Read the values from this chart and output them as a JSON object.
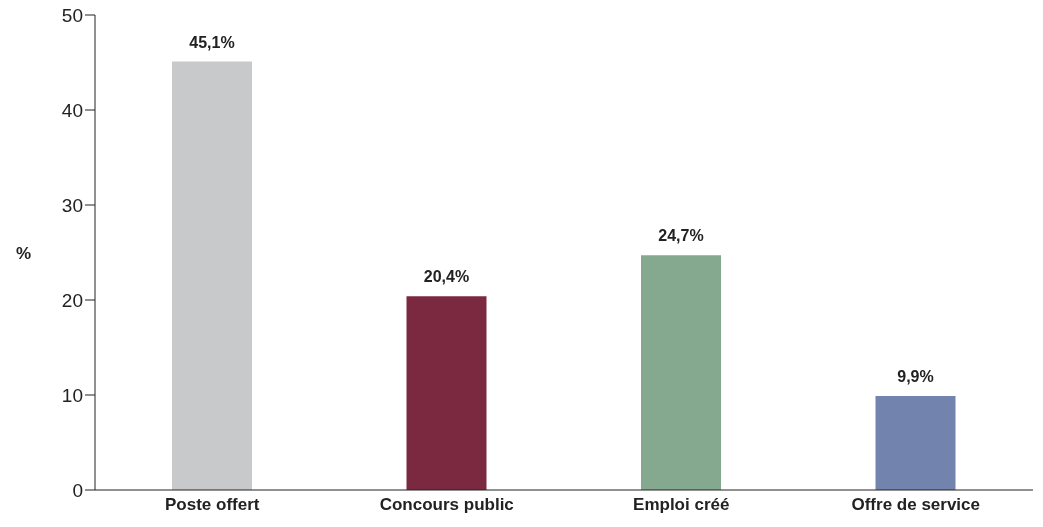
{
  "chart_data": {
    "type": "bar",
    "ylabel": "%",
    "categories": [
      "Poste offert",
      "Concours public",
      "Emploi créé",
      "Offre de service"
    ],
    "values": [
      45.1,
      20.4,
      24.7,
      9.9
    ],
    "colors": [
      "#c8c9cb",
      "#7b2941",
      "#85a98e",
      "#7283ad"
    ],
    "value_labels": [
      "45,1%",
      "20,4%",
      "24,7%",
      "9,9%"
    ],
    "ylim": [
      0,
      50
    ],
    "yticks": [
      0,
      10,
      20,
      30,
      40,
      50
    ],
    "grid": false,
    "legend": false
  }
}
